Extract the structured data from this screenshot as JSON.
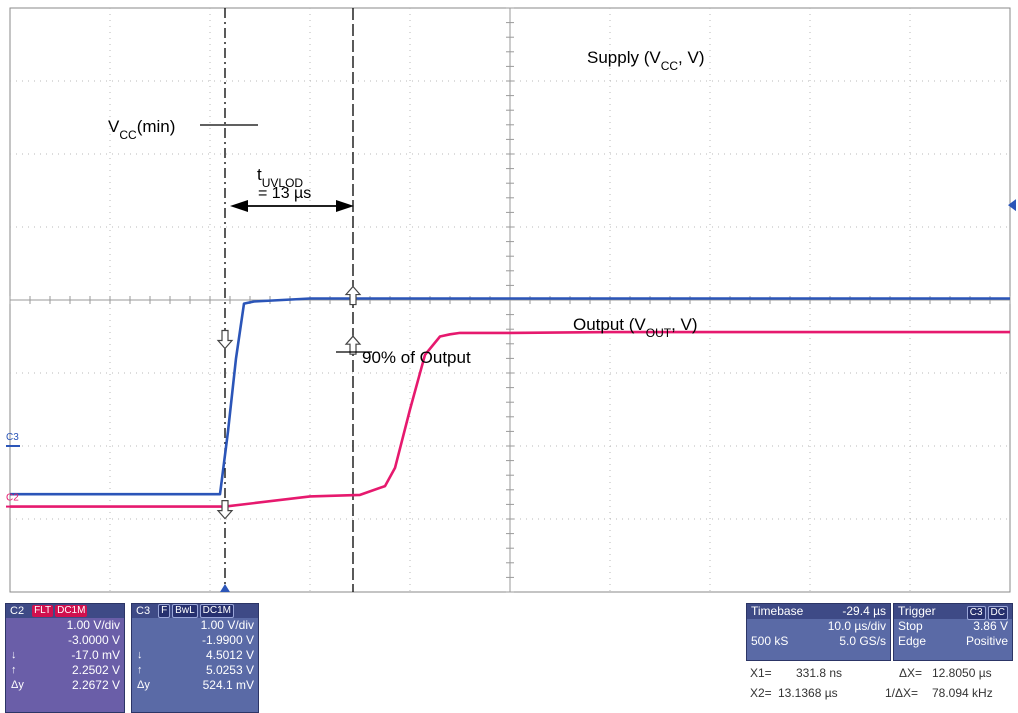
{
  "chart_data": {
    "type": "line",
    "title": "",
    "xlabel": "",
    "ylabel": "",
    "grid": true,
    "divisions": {
      "x": 10,
      "y": 8
    },
    "x_unit": "µs",
    "x_per_div": 10,
    "xlim": [
      -50,
      50
    ],
    "series": [
      {
        "name": "Supply (VCC, V)",
        "color": "#2b55b8",
        "x": [
          -50,
          -29,
          -28.2,
          -27.4,
          -26.6,
          -25.6,
          -20,
          50
        ],
        "y": [
          -2.66,
          -2.66,
          -1.8,
          -0.8,
          -0.05,
          -0.02,
          0.02,
          0.02
        ]
      },
      {
        "name": "Output (VOUT, V)",
        "color": "#e6196e",
        "x": [
          -50,
          -28.5,
          -20,
          -15,
          -12.5,
          -11.5,
          -10,
          -8.5,
          -7,
          -6,
          -5,
          0,
          10,
          50
        ],
        "y": [
          -2.83,
          -2.83,
          -2.69,
          -2.67,
          -2.55,
          -2.3,
          -1.5,
          -0.75,
          -0.5,
          -0.47,
          -0.45,
          -0.45,
          -0.44,
          -0.44
        ]
      }
    ],
    "cursors": {
      "x1": -28.5,
      "x2": -15.7
    },
    "annotations": {
      "supply_label": {
        "pre": "Supply (V",
        "sub": "CC",
        "post": ", V)"
      },
      "output_label": {
        "pre": "Output (V",
        "sub": "OUT",
        "post": ", V)"
      },
      "vcc_min": {
        "pre": "V",
        "sub": "CC",
        "post": "(min)"
      },
      "t_uvlod": {
        "pre": "t",
        "sub": "UVLOD"
      },
      "t_uvlod_value": "= 13 µs",
      "output_90": "90% of Output"
    },
    "channel_markers": {
      "c3": "C3",
      "c2": "C2"
    }
  },
  "channel_panels": {
    "c2": {
      "name": "C2",
      "tags": [
        "FLT",
        "DC1M"
      ],
      "rows": [
        {
          "sym": "",
          "val": "1.00 V/div"
        },
        {
          "sym": "",
          "val": "-3.0000 V"
        },
        {
          "sym": "↓",
          "val": "-17.0 mV"
        },
        {
          "sym": "↑",
          "val": "2.2502 V"
        },
        {
          "sym": "Δy",
          "val": "2.2672 V"
        }
      ]
    },
    "c3": {
      "name": "C3",
      "tags": [
        "F",
        "BwL",
        "DC1M"
      ],
      "rows": [
        {
          "sym": "",
          "val": "1.00 V/div"
        },
        {
          "sym": "",
          "val": "-1.9900 V"
        },
        {
          "sym": "↓",
          "val": "4.5012 V"
        },
        {
          "sym": "↑",
          "val": "5.0253 V"
        },
        {
          "sym": "Δy",
          "val": "524.1 mV"
        }
      ]
    }
  },
  "timebase": {
    "label": "Timebase",
    "delay": "-29.4 µs",
    "per_div": "10.0 µs/div",
    "samples": "500 kS",
    "rate": "5.0 GS/s"
  },
  "trigger": {
    "label": "Trigger",
    "tags": [
      "C3",
      "DC"
    ],
    "mode": "Stop",
    "level": "3.86 V",
    "type": "Edge",
    "slope": "Positive"
  },
  "measurements": {
    "x1_label": "X1=",
    "x1": "331.8 ns",
    "dx_label": "ΔX=",
    "dx": "12.8050 µs",
    "x2_label": "X2=",
    "x2": "13.1368 µs",
    "inv_dx_label": "1/ΔX=",
    "inv_dx": "78.094 kHz"
  }
}
